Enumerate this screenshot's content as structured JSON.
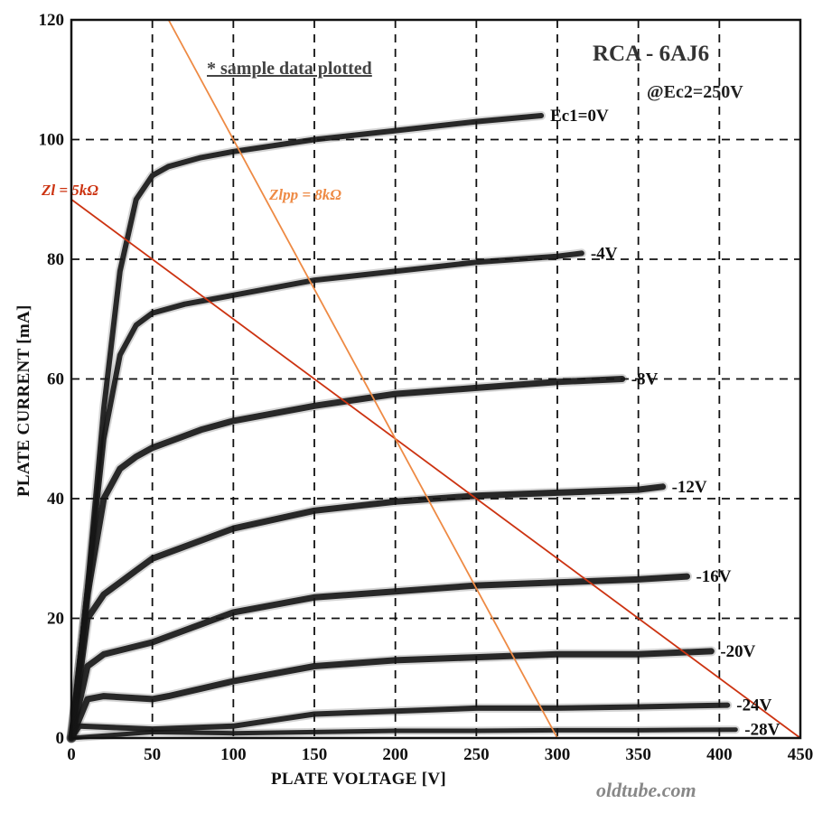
{
  "chart_data": {
    "type": "line",
    "title": "RCA - 6AJ6",
    "subtitle": "@Ec2=250V",
    "note": "* sample data plotted",
    "xlabel": "PLATE VOLTAGE  [V]",
    "ylabel": "PLATE CURRENT  [mA]",
    "xlim": [
      0,
      450
    ],
    "ylim": [
      0,
      120
    ],
    "x_ticks": [
      "0",
      "50",
      "100",
      "150",
      "200",
      "250",
      "300",
      "350",
      "400",
      "450"
    ],
    "y_ticks": [
      "0",
      "20",
      "40",
      "60",
      "80",
      "100",
      "120"
    ],
    "grid": true,
    "series": [
      {
        "name": "Ec1=0V",
        "x": [
          0,
          10,
          20,
          30,
          40,
          50,
          60,
          80,
          100,
          150,
          200,
          250,
          290
        ],
        "y": [
          0,
          25,
          55,
          78,
          90,
          94,
          95.5,
          97,
          98,
          100,
          101.5,
          103,
          104
        ]
      },
      {
        "name": "-4V",
        "x": [
          0,
          10,
          20,
          30,
          40,
          50,
          70,
          100,
          150,
          200,
          250,
          300,
          315
        ],
        "y": [
          0,
          25,
          50,
          64,
          69,
          71,
          72.5,
          74,
          76.5,
          78,
          79.5,
          80.5,
          81
        ]
      },
      {
        "name": "-8V",
        "x": [
          0,
          10,
          20,
          30,
          40,
          50,
          60,
          80,
          100,
          150,
          200,
          250,
          300,
          340
        ],
        "y": [
          0,
          24,
          40,
          45,
          47,
          48.5,
          49.5,
          51.5,
          53,
          55.5,
          57.5,
          58.5,
          59.5,
          60
        ]
      },
      {
        "name": "-12V",
        "x": [
          0,
          10,
          20,
          25,
          30,
          40,
          50,
          100,
          150,
          200,
          250,
          300,
          350,
          365
        ],
        "y": [
          0,
          20,
          24,
          25,
          26,
          28,
          30,
          35,
          38,
          39.5,
          40.5,
          41,
          41.5,
          42
        ]
      },
      {
        "name": "-16V",
        "x": [
          0,
          10,
          15,
          20,
          50,
          100,
          150,
          200,
          250,
          300,
          350,
          380
        ],
        "y": [
          0,
          12,
          13,
          14,
          16,
          21,
          23.5,
          24.5,
          25.5,
          26,
          26.5,
          27
        ]
      },
      {
        "name": "-20V",
        "x": [
          0,
          10,
          20,
          50,
          60,
          100,
          150,
          200,
          250,
          300,
          350,
          395
        ],
        "y": [
          0,
          6.5,
          7,
          6.5,
          7,
          9.5,
          12,
          13,
          13.5,
          14,
          14,
          14.5
        ]
      },
      {
        "name": "-24V",
        "x": [
          0,
          5,
          50,
          100,
          150,
          200,
          250,
          300,
          350,
          405
        ],
        "y": [
          0,
          2,
          1.5,
          2,
          4,
          4.5,
          5,
          5,
          5.2,
          5.5
        ]
      },
      {
        "name": "-28V",
        "x": [
          0,
          50,
          100,
          150,
          200,
          250,
          300,
          350,
          410
        ],
        "y": [
          0,
          1,
          0.8,
          1,
          1.2,
          1.2,
          1.3,
          1.3,
          1.4
        ]
      }
    ],
    "load_lines": [
      {
        "name": "Zl = 5kΩ",
        "x": [
          0,
          450
        ],
        "y": [
          90,
          0
        ],
        "color": "#cc3311"
      },
      {
        "name": "Zlpp = 8kΩ",
        "x": [
          60,
          300
        ],
        "y": [
          120,
          0
        ],
        "color": "#ee8a44"
      }
    ],
    "watermark": "oldtube.com"
  }
}
